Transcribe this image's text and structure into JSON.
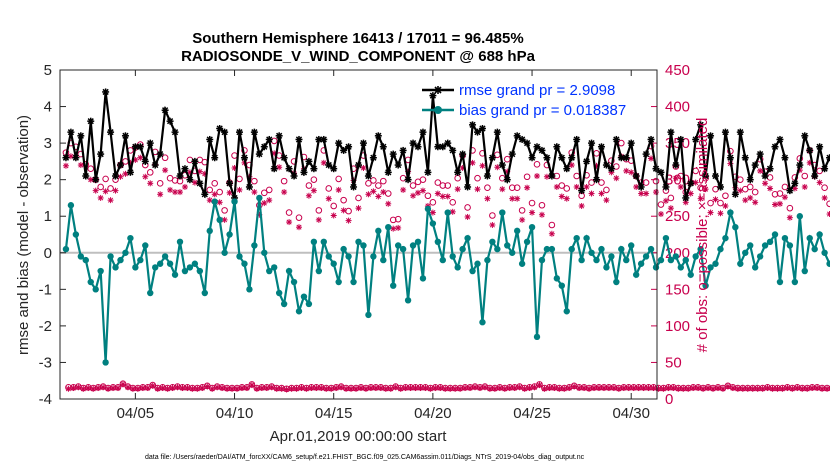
{
  "chart_data": {
    "type": "line",
    "title": [
      "Southern Hemisphere 16413 / 17011 = 96.485%",
      "RADIOSONDE_V_WIND_COMPONENT @ 688 hPa"
    ],
    "xlabel": "Apr.01,2019 00:00:00 start",
    "ylabel": "rmse and bias (model - observation)",
    "ylabel_right": "# of obs: o=possible; ×=assimilated",
    "footnote": "data file: /Users/raeder/DAI/ATM_forcXX/CAM6_setup/f.e21.FHIST_BGC.f09_025.CAM6assim.011/Diags_NTrS_2019-04/obs_diag_output.nc",
    "xlim": [
      0.7,
      30.8
    ],
    "ylim": [
      -4,
      5
    ],
    "ylim_right": [
      0,
      450
    ],
    "x_ticks": [
      4.5,
      9.5,
      14.5,
      19.5,
      24.5,
      29.5
    ],
    "x_tick_labels": [
      "04/05",
      "04/10",
      "04/15",
      "04/20",
      "04/25",
      "04/30"
    ],
    "y_ticks": [
      -4,
      -3,
      -2,
      -1,
      0,
      1,
      2,
      3,
      4,
      5
    ],
    "y_tick_labels": [
      "-4",
      "-3",
      "-2",
      "-1",
      "0",
      "1",
      "2",
      "3",
      "4",
      "5"
    ],
    "y_ticks_right": [
      0,
      50,
      100,
      150,
      200,
      250,
      300,
      350,
      400,
      450
    ],
    "y_tick_labels_right": [
      "0",
      "50",
      "100",
      "150",
      "200",
      "250",
      "300",
      "350",
      "400",
      "450"
    ],
    "colors": {
      "rmse": "#000000",
      "bias": "#008080",
      "counts": "#c8004d",
      "zero": "#bfbfbf",
      "legend_text": "#0033ff"
    },
    "legend": {
      "location": "top-right",
      "entries": [
        "rmse grand pr = 2.9098",
        "bias grand pr = 0.018387"
      ]
    },
    "x_start": 1.0,
    "x_step": 0.25,
    "series": [
      {
        "name": "rmse",
        "marker": "asterisk",
        "values": [
          2.6,
          3.3,
          2.6,
          3.2,
          2.1,
          3.6,
          2.0,
          2.7,
          4.4,
          3.3,
          2.1,
          2.4,
          3.2,
          2.2,
          2.9,
          2.9,
          2.5,
          3.0,
          2.4,
          2.7,
          3.9,
          3.6,
          3.3,
          2.1,
          2.3,
          2.0,
          2.5,
          1.9,
          1.6,
          3.1,
          2.6,
          3.4,
          3.3,
          1.9,
          1.5,
          3.3,
          2.6,
          1.8,
          3.3,
          2.7,
          2.9,
          3.1,
          2.3,
          3.2,
          2.6,
          2.3,
          2.1,
          3.1,
          2.2,
          2.5,
          2.3,
          3.1,
          3.1,
          2.4,
          2.3,
          3.0,
          2.8,
          2.9,
          1.8,
          2.4,
          3.0,
          2.1,
          2.6,
          3.2,
          2.9,
          2.2,
          2.7,
          2.4,
          2.8,
          2.0,
          3.0,
          2.9,
          3.3,
          2.2,
          4.3,
          2.9,
          2.9,
          3.0,
          2.8,
          2.2,
          2.7,
          1.8,
          3.5,
          3.3,
          3.4,
          2.1,
          2.6,
          3.3,
          2.4,
          2.0,
          2.7,
          3.2,
          3.1,
          3.0,
          2.6,
          2.9,
          2.8,
          2.6,
          2.1,
          2.9,
          2.6,
          2.3,
          2.6,
          3.1,
          1.7,
          2.5,
          3.0,
          2.0,
          2.9,
          2.4,
          2.3,
          3.1,
          2.6,
          2.6,
          3.0,
          2.1,
          1.8,
          2.7,
          3.1,
          2.3,
          2.2,
          1.8,
          3.3,
          2.4,
          3.1,
          1.5,
          1.9,
          3.1,
          3.5,
          2.1,
          3.2,
          2.1,
          1.8,
          3.3,
          2.6,
          1.6,
          3.3,
          2.6,
          2.0,
          2.4,
          2.7,
          2.1,
          2.3,
          2.9,
          3.1,
          2.6,
          1.7,
          1.9,
          2.4,
          3.2,
          2.8,
          2.1,
          2.9,
          2.3,
          2.6,
          2.8,
          2.9,
          2.4,
          2.9,
          3.1,
          2.8,
          3.0,
          3.9,
          3.0,
          2.7,
          3.2,
          2.2,
          2.5,
          3.1,
          1.9,
          1.6,
          2.9,
          2.0,
          3.3,
          3.1,
          2.5,
          2.1,
          2.2
        ]
      },
      {
        "name": "bias",
        "marker": "circle",
        "values": [
          0.1,
          1.3,
          0.5,
          -0.1,
          -0.2,
          -0.8,
          -1.0,
          -0.5,
          -3.0,
          -0.1,
          -0.4,
          -0.2,
          0.0,
          0.4,
          -0.4,
          -0.2,
          0.2,
          -1.1,
          -0.4,
          -0.3,
          -0.1,
          -0.3,
          -0.6,
          0.3,
          -0.5,
          -0.4,
          -0.3,
          -0.5,
          -1.1,
          0.6,
          1.4,
          0.9,
          0.0,
          0.5,
          1.4,
          -0.1,
          -0.3,
          -1.0,
          0.2,
          1.5,
          0.0,
          -0.5,
          -0.4,
          -1.1,
          -1.4,
          -0.5,
          -0.8,
          -1.6,
          -1.2,
          -1.4,
          0.3,
          -0.5,
          0.3,
          -0.1,
          -0.3,
          -0.8,
          0.1,
          -0.1,
          -0.8,
          0.3,
          0.2,
          -1.7,
          -0.1,
          0.6,
          -0.2,
          0.7,
          -0.9,
          0.2,
          0.1,
          -1.3,
          0.2,
          0.3,
          -0.7,
          1.2,
          0.8,
          0.3,
          -0.2,
          1.1,
          -0.1,
          -0.4,
          0.1,
          0.4,
          -0.5,
          -0.3,
          -1.9,
          -0.2,
          0.3,
          0.1,
          1.1,
          0.2,
          0.0,
          0.6,
          -0.3,
          0.3,
          0.7,
          -2.3,
          -0.2,
          0.1,
          0.1,
          -0.7,
          -0.9,
          -1.6,
          0.1,
          0.4,
          -0.2,
          0.4,
          0.0,
          -0.2,
          0.1,
          -0.4,
          -0.1,
          -0.8,
          0.1,
          -0.2,
          0.2,
          -0.6,
          -0.3,
          -0.1,
          0.1,
          -0.4,
          -0.2,
          0.4,
          -0.2,
          -0.1,
          -0.4,
          -0.2,
          -0.6,
          -0.1,
          0.1,
          -0.9,
          -0.4,
          -0.3,
          0.1,
          0.4,
          1.1,
          0.7,
          -0.3,
          0.0,
          0.2,
          -0.4,
          -0.1,
          0.2,
          0.3,
          0.5,
          -0.8,
          0.4,
          0.2,
          -0.8,
          1.0,
          -0.5,
          0.4,
          0.1,
          0.5,
          0.0,
          -0.3,
          -0.6,
          -0.3,
          -0.8,
          0.0,
          0.7,
          -1.1,
          -0.4,
          -0.2,
          0.6,
          0.1,
          -0.7,
          0.1,
          0.4,
          1.8,
          0.7,
          0.3,
          0.6,
          0.1,
          -0.2,
          -0.6,
          -0.3,
          0.0,
          0.4,
          1.5
        ]
      },
      {
        "name": "obs possible",
        "marker": "open-circle",
        "axis": "right",
        "values": [
          337,
          350,
          345,
          335,
          321,
          315,
          300,
          290,
          301,
          288,
          300,
          320,
          325,
          340,
          344,
          348,
          320,
          310,
          338,
          295,
          330,
          302,
          299,
          298,
          306,
          327,
          312,
          327,
          324,
          286,
          295,
          283,
          258,
          296,
          333,
          301,
          340,
          320,
          298,
          265,
          282,
          286,
          353,
          333,
          298,
          255,
          325,
          248,
          331,
          292,
          300,
          258,
          340,
          288,
          264,
          301,
          272,
          257,
          315,
          275,
          333,
          295,
          299,
          292,
          298,
          281,
          245,
          246,
          302,
          327,
          292,
          297,
          300,
          278,
          269,
          296,
          292,
          292,
          269,
          302,
          333,
          262,
          340,
          302,
          336,
          289,
          251,
          334,
          302,
          328,
          289,
          289,
          258,
          304,
          268,
          321,
          265,
          320,
          238,
          305,
          292,
          288,
          337,
          305,
          278,
          306,
          296,
          336,
          296,
          286,
          326,
          318,
          350,
          328,
          326,
          305,
          296,
          296,
          346,
          298,
          266,
          285,
          275,
          318,
          305,
          283,
          296,
          312,
          289,
          302,
          268,
          287,
          268,
          278,
          339,
          304,
          300,
          287,
          290,
          283,
          328,
          311,
          303,
          280,
          281,
          290,
          261,
          303,
          329,
          305,
          340,
          320,
          312,
          289,
          267,
          328,
          290,
          292,
          314,
          306,
          280,
          308,
          329,
          297,
          294,
          292,
          295,
          305,
          290,
          339,
          300,
          326,
          316,
          290,
          268
        ]
      },
      {
        "name": "obs assimilated",
        "marker": "x",
        "axis": "right",
        "values": [
          319,
          332,
          330,
          320,
          305,
          300,
          285,
          275,
          284,
          272,
          285,
          304,
          308,
          323,
          327,
          330,
          304,
          295,
          321,
          280,
          313,
          286,
          283,
          283,
          290,
          310,
          296,
          311,
          308,
          272,
          280,
          269,
          245,
          282,
          316,
          286,
          323,
          304,
          283,
          252,
          268,
          272,
          336,
          317,
          283,
          242,
          309,
          235,
          315,
          278,
          285,
          245,
          323,
          274,
          251,
          286,
          258,
          244,
          299,
          261,
          316,
          280,
          284,
          277,
          283,
          267,
          233,
          234,
          286,
          311,
          278,
          282,
          285,
          264,
          255,
          281,
          277,
          277,
          256,
          287,
          316,
          249,
          323,
          287,
          319,
          274,
          238,
          317,
          287,
          311,
          274,
          274,
          245,
          289,
          255,
          305,
          252,
          304,
          226,
          290,
          277,
          274,
          320,
          290,
          264,
          290,
          281,
          319,
          281,
          272,
          310,
          302,
          332,
          312,
          310,
          290,
          281,
          281,
          329,
          283,
          253,
          271,
          261,
          302,
          290,
          269,
          281,
          296,
          274,
          287,
          255,
          273,
          254,
          264,
          322,
          289,
          285,
          272,
          275,
          269,
          312,
          295,
          288,
          266,
          267,
          276,
          248,
          288,
          313,
          290,
          323,
          304,
          296,
          275,
          253,
          312,
          275,
          277,
          298,
          290,
          266,
          292,
          313,
          282,
          279,
          278,
          280,
          290,
          276,
          322,
          285,
          310,
          300,
          276,
          255
        ]
      },
      {
        "name": "bottom possible",
        "marker": "open-circle",
        "axis": "right",
        "x_offset": 0.125,
        "values": [
          16,
          16,
          17,
          15,
          16,
          15,
          16,
          17,
          15,
          16,
          16,
          21,
          17,
          15,
          15,
          16,
          16,
          19,
          15,
          16,
          15,
          16,
          17,
          16,
          16,
          15,
          15,
          16,
          18,
          15,
          17,
          16,
          15,
          15,
          15,
          16,
          16,
          20,
          15,
          16,
          16,
          17,
          15,
          15,
          14,
          15,
          15,
          16,
          15,
          16,
          16,
          16,
          15,
          15,
          16,
          17,
          15,
          15,
          15,
          16,
          15,
          16,
          16,
          16,
          15,
          15,
          17,
          15,
          16,
          16,
          16,
          16,
          16,
          15,
          16,
          16,
          15,
          15,
          15,
          15,
          16,
          16,
          17,
          16,
          17,
          15,
          15,
          16,
          15,
          16,
          16,
          17,
          15,
          16,
          17,
          20,
          15,
          16,
          16,
          15,
          15,
          16,
          18,
          16,
          16,
          15,
          16,
          16,
          16,
          16,
          16,
          15,
          16,
          16,
          16,
          16,
          16,
          16,
          16,
          15,
          15,
          16,
          16,
          15,
          15,
          15,
          16,
          16,
          15,
          16,
          15,
          16,
          15,
          18,
          16,
          15,
          15,
          15,
          15,
          15,
          15,
          16,
          15,
          15,
          15,
          16,
          15,
          16,
          15,
          15,
          16,
          16,
          15,
          15,
          15,
          15,
          17,
          16,
          15,
          16,
          15,
          15,
          15,
          16,
          15,
          16,
          15,
          20,
          15,
          16,
          15,
          16,
          16,
          16,
          16
        ]
      },
      {
        "name": "bottom assimilated",
        "marker": "x",
        "axis": "right",
        "x_offset": 0.125,
        "values": [
          14,
          15,
          16,
          14,
          15,
          14,
          15,
          16,
          14,
          15,
          15,
          20,
          16,
          14,
          14,
          15,
          15,
          18,
          14,
          15,
          14,
          15,
          16,
          15,
          15,
          14,
          14,
          15,
          17,
          14,
          16,
          15,
          14,
          14,
          14,
          15,
          15,
          19,
          14,
          15,
          15,
          16,
          14,
          14,
          13,
          14,
          14,
          15,
          14,
          15,
          15,
          15,
          14,
          14,
          15,
          16,
          14,
          14,
          14,
          15,
          14,
          15,
          15,
          15,
          14,
          14,
          16,
          14,
          15,
          15,
          15,
          15,
          15,
          14,
          15,
          15,
          14,
          14,
          14,
          14,
          15,
          15,
          16,
          15,
          16,
          14,
          14,
          15,
          14,
          15,
          15,
          16,
          14,
          15,
          16,
          19,
          14,
          15,
          15,
          14,
          14,
          15,
          17,
          15,
          15,
          14,
          15,
          15,
          15,
          15,
          15,
          14,
          15,
          15,
          15,
          15,
          15,
          15,
          15,
          14,
          14,
          15,
          15,
          14,
          14,
          14,
          15,
          15,
          14,
          15,
          14,
          15,
          14,
          17,
          15,
          14,
          14,
          14,
          14,
          14,
          14,
          15,
          14,
          14,
          14,
          15,
          14,
          15,
          14,
          14,
          15,
          15,
          14,
          14,
          14,
          14,
          16,
          15,
          14,
          15,
          14,
          14,
          14,
          15,
          14,
          15,
          14,
          19,
          14,
          15,
          14,
          15,
          15,
          15,
          15
        ]
      }
    ]
  }
}
